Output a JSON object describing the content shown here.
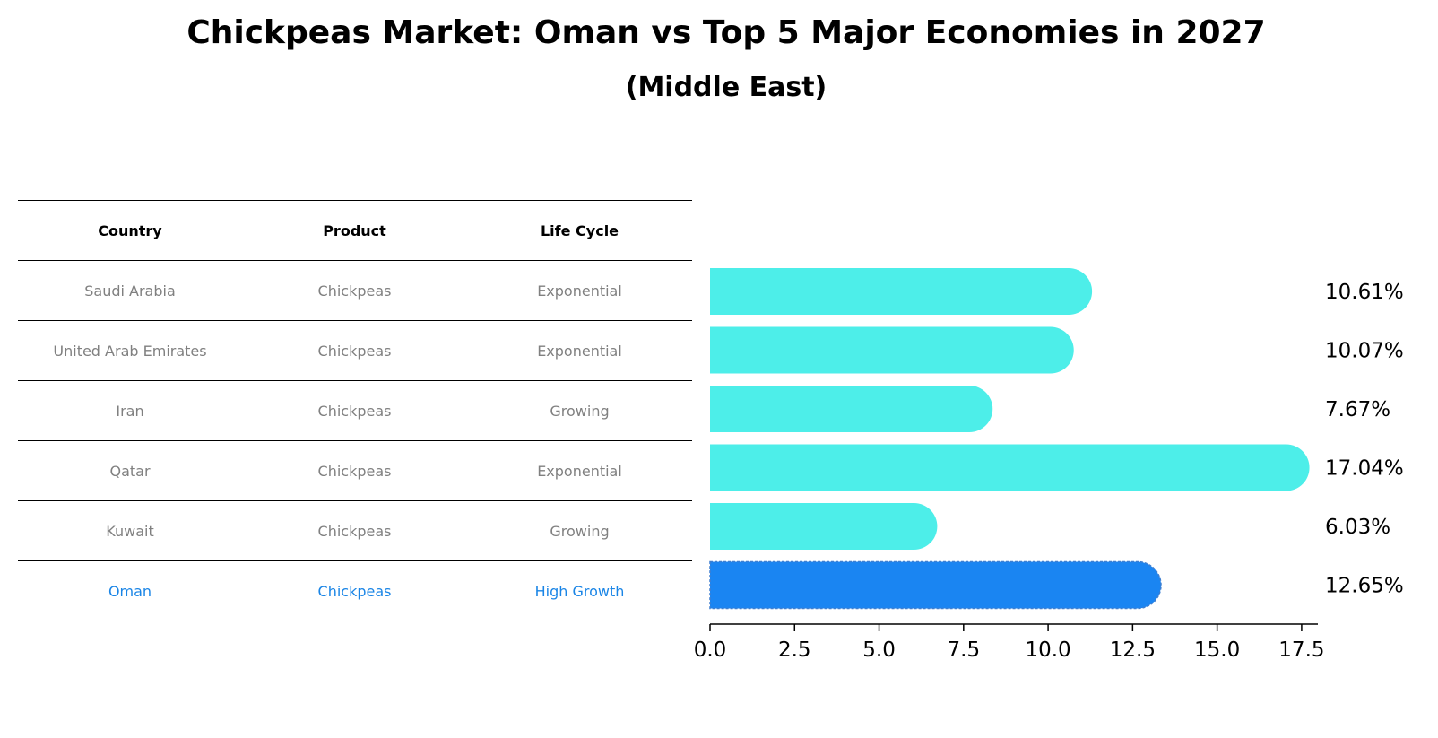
{
  "header": {
    "title": "Chickpeas Market: Oman vs Top 5 Major Economies in 2027",
    "subtitle": "(Middle East)"
  },
  "table": {
    "columns": [
      "Country",
      "Product",
      "Life Cycle"
    ],
    "rows": [
      [
        "Saudi Arabia",
        "Chickpeas",
        "Exponential"
      ],
      [
        "United Arab Emirates",
        "Chickpeas",
        "Exponential"
      ],
      [
        "Iran",
        "Chickpeas",
        "Growing"
      ],
      [
        "Qatar",
        "Chickpeas",
        "Exponential"
      ],
      [
        "Kuwait",
        "Chickpeas",
        "Growing"
      ],
      [
        "Oman",
        "Chickpeas",
        "High Growth"
      ]
    ]
  },
  "colors": {
    "bar": "#4deee9",
    "highlight": "#1a85f2",
    "highlight_text": "#1a85e6",
    "muted_text": "#808080"
  },
  "chart_data": {
    "type": "bar",
    "orientation": "horizontal",
    "categories": [
      "Saudi Arabia",
      "United Arab Emirates",
      "Iran",
      "Qatar",
      "Kuwait",
      "Oman"
    ],
    "values": [
      10.61,
      10.07,
      7.67,
      17.04,
      6.03,
      12.65
    ],
    "value_labels": [
      "10.61%",
      "10.07%",
      "7.67%",
      "17.04%",
      "6.03%",
      "12.65%"
    ],
    "highlight_category": "Oman",
    "xlim": [
      0,
      17.9
    ],
    "xticks": [
      0.0,
      2.5,
      5.0,
      7.5,
      10.0,
      12.5,
      15.0,
      17.5
    ],
    "xtick_labels": [
      "0.0",
      "2.5",
      "5.0",
      "7.5",
      "10.0",
      "12.5",
      "15.0",
      "17.5"
    ],
    "xlabel": "",
    "ylabel": "",
    "grid": false
  }
}
